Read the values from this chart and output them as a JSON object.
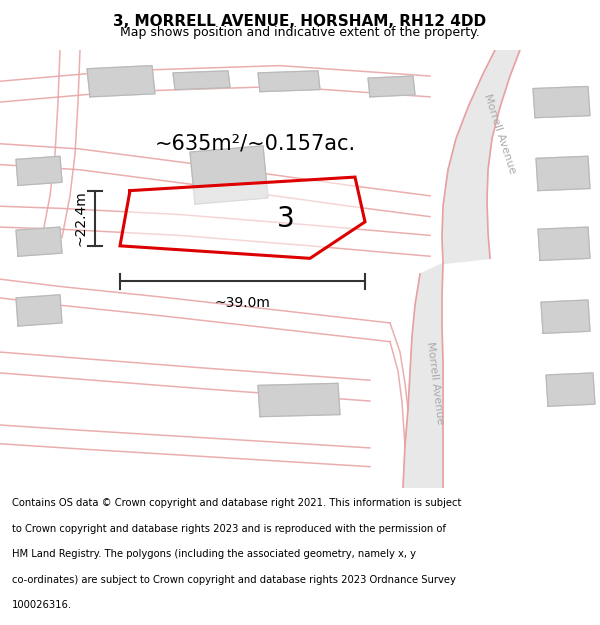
{
  "title": "3, MORRELL AVENUE, HORSHAM, RH12 4DD",
  "subtitle": "Map shows position and indicative extent of the property.",
  "footer_lines": [
    "Contains OS data © Crown copyright and database right 2021. This information is subject",
    "to Crown copyright and database rights 2023 and is reproduced with the permission of",
    "HM Land Registry. The polygons (including the associated geometry, namely x, y",
    "co-ordinates) are subject to Crown copyright and database rights 2023 Ordnance Survey",
    "100026316."
  ],
  "bg_color": "#f2f0ed",
  "road_fill": "#f0e0e0",
  "road_line": "#e8a0a0",
  "road_thick_fill": "#e8e8e8",
  "road_thick_line": "#d0a0a0",
  "building_fill": "#d0d0d0",
  "building_edge": "#b8b8b8",
  "plot_line": "#dd0000",
  "area_text": "~635m²/~0.157ac.",
  "plot_label": "3",
  "dim_w": "~39.0m",
  "dim_h": "~22.4m",
  "road_label": "Morrell Avenue",
  "title_fs": 11,
  "subtitle_fs": 9,
  "footer_fs": 7.2,
  "area_fs": 15,
  "plot_label_fs": 20,
  "dim_fs": 10,
  "road_label_fs": 8
}
